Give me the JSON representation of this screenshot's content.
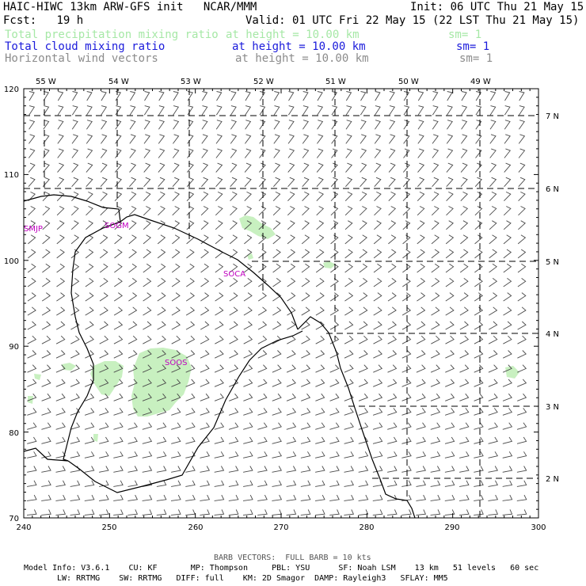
{
  "header": {
    "title": "HAIC-HIWC 13km ARW-GFS init",
    "center": "NCAR/MMM",
    "init": "Init: 06 UTC Thu 21 May 15",
    "fcst_label": "Fcst:",
    "fcst_value": "19 h",
    "valid": "Valid: 01 UTC Fri 22 May 15 (22 LST Thu 21 May 15)"
  },
  "fields": [
    {
      "name": "Total precipitation mixing ratio",
      "level": "at height = 10.00 km",
      "sm": "sm= 1",
      "color": "#a6e8a6"
    },
    {
      "name": "Total cloud mixing ratio",
      "level": "at height = 10.00 km",
      "sm": "sm= 1",
      "color": "#1a1adb"
    },
    {
      "name": "Horizontal wind vectors",
      "level": "at height = 10.00 km",
      "sm": "sm= 1",
      "color": "#8c8c8c"
    }
  ],
  "map": {
    "lon_labels": [
      "55 W",
      "54 W",
      "53 W",
      "52 W",
      "51 W",
      "50 W",
      "49 W"
    ],
    "lat_labels": [
      "7 N",
      "6 N",
      "5 N",
      "4 N",
      "3 N",
      "2 N"
    ],
    "x_ticks": [
      "240",
      "250",
      "260",
      "270",
      "280",
      "290",
      "300"
    ],
    "y_ticks": [
      "120",
      "110",
      "100",
      "90",
      "80",
      "70"
    ],
    "stations": [
      "SMJP",
      "SOGM",
      "SOCA",
      "SOOS"
    ],
    "colors": {
      "precip": "#c8f0c0",
      "coast": "#000000",
      "barb": "#4a4a4a",
      "grid": "#000000",
      "station": "#c000c0"
    }
  },
  "footer": {
    "barb_note": "BARB VECTORS:  FULL BARB = 10 kts",
    "line1": "Model Info: V3.6.1    CU: KF       MP: Thompson     PBL: YSU      SF: Noah LSM    13 km   51 levels   60 sec",
    "line2": "LW: RRTMG    SW: RRTMG   DIFF: full    KM: 2D Smagor  DAMP: Rayleigh3   SFLAY: MM5"
  }
}
